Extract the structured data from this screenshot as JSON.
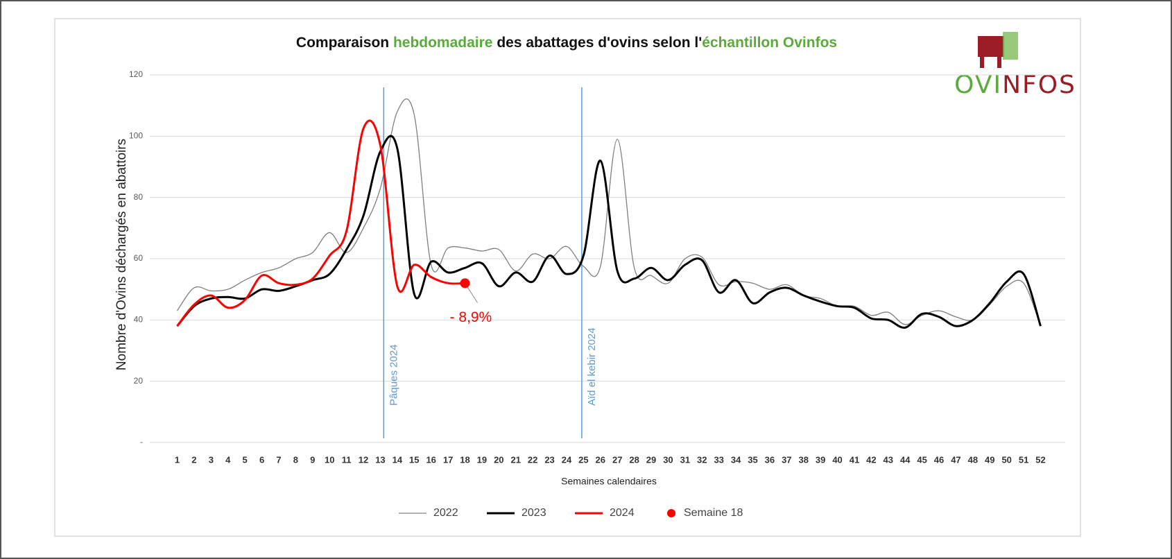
{
  "chart_data": {
    "type": "line",
    "title_parts": [
      {
        "text": "Comparaison ",
        "color": "#111111"
      },
      {
        "text": "hebdomadaire",
        "color": "#5aab3c"
      },
      {
        "text": " des abattages d'ovins selon l'",
        "color": "#111111"
      },
      {
        "text": "échantillon Ovinfos",
        "color": "#5aab3c"
      }
    ],
    "logo_parts": [
      {
        "text": "OVI",
        "color": "#5aab3c"
      },
      {
        "text": "NFOS",
        "color": "#9b1c24"
      }
    ],
    "y_label": "Nombre d'Ovins déchargés en abattoirs",
    "x_label": "Semaines calendaires",
    "x": [
      1,
      2,
      3,
      4,
      5,
      6,
      7,
      8,
      9,
      10,
      11,
      12,
      13,
      14,
      15,
      16,
      17,
      18,
      19,
      20,
      21,
      22,
      23,
      24,
      25,
      26,
      27,
      28,
      29,
      30,
      31,
      32,
      33,
      34,
      35,
      36,
      37,
      38,
      39,
      40,
      41,
      42,
      43,
      44,
      45,
      46,
      47,
      48,
      49,
      50,
      51,
      52
    ],
    "ylim": [
      0,
      120
    ],
    "yticks": [
      {
        "value": 0,
        "label": "-"
      },
      20,
      40,
      60,
      80,
      100,
      120
    ],
    "grid": true,
    "series": [
      {
        "name": "2022",
        "color": "#7f7f7f",
        "width": 1.3,
        "values": [
          43,
          50.5,
          49.5,
          50,
          53,
          55.5,
          57,
          60,
          62,
          68.5,
          62,
          70,
          83,
          108,
          107,
          58,
          63.5,
          63.5,
          62.5,
          63,
          56,
          61.5,
          60,
          64,
          57.5,
          57.5,
          99,
          57,
          54.5,
          52,
          60,
          60.5,
          51.5,
          52.5,
          52,
          50,
          51.5,
          48,
          47,
          44.5,
          44.5,
          41.5,
          42.5,
          38.5,
          41.5,
          43,
          41,
          40,
          45,
          51,
          52,
          38
        ]
      },
      {
        "name": "2023",
        "color": "#000000",
        "width": 3,
        "values": [
          38,
          44.5,
          47,
          47.5,
          47,
          50,
          49.5,
          51,
          53,
          55,
          63,
          74,
          95,
          96,
          48.5,
          59,
          55.5,
          57,
          58.5,
          51,
          55.5,
          52.5,
          61,
          55,
          61,
          92,
          56,
          53.5,
          57,
          53,
          58,
          59.5,
          49,
          53,
          45.5,
          49,
          50.5,
          48,
          46,
          44.5,
          44,
          40.5,
          40,
          37.5,
          42,
          41,
          38,
          40,
          45.5,
          52.5,
          55,
          38
        ]
      },
      {
        "name": "2024",
        "color": "#ff0000",
        "width": 3,
        "values": [
          38,
          45,
          48,
          44,
          46.5,
          54.5,
          52,
          51.5,
          53.5,
          61,
          69,
          102.5,
          97,
          51,
          58,
          54,
          52,
          52,
          null,
          null,
          null,
          null,
          null,
          null,
          null,
          null,
          null,
          null,
          null,
          null,
          null,
          null,
          null,
          null,
          null,
          null,
          null,
          null,
          null,
          null,
          null,
          null,
          null,
          null,
          null,
          null,
          null,
          null,
          null,
          null,
          null,
          null
        ]
      }
    ],
    "point": {
      "name": "Semaine 18",
      "color": "#ff0000",
      "x": 18,
      "value": 52,
      "annotation": "- 8,9%"
    },
    "vlines": [
      {
        "x": 13.2,
        "label": "Pâques 2024",
        "color": "#5b9bd5"
      },
      {
        "x": 24.9,
        "label": "Aïd el kebir 2024",
        "color": "#5b9bd5"
      }
    ]
  }
}
